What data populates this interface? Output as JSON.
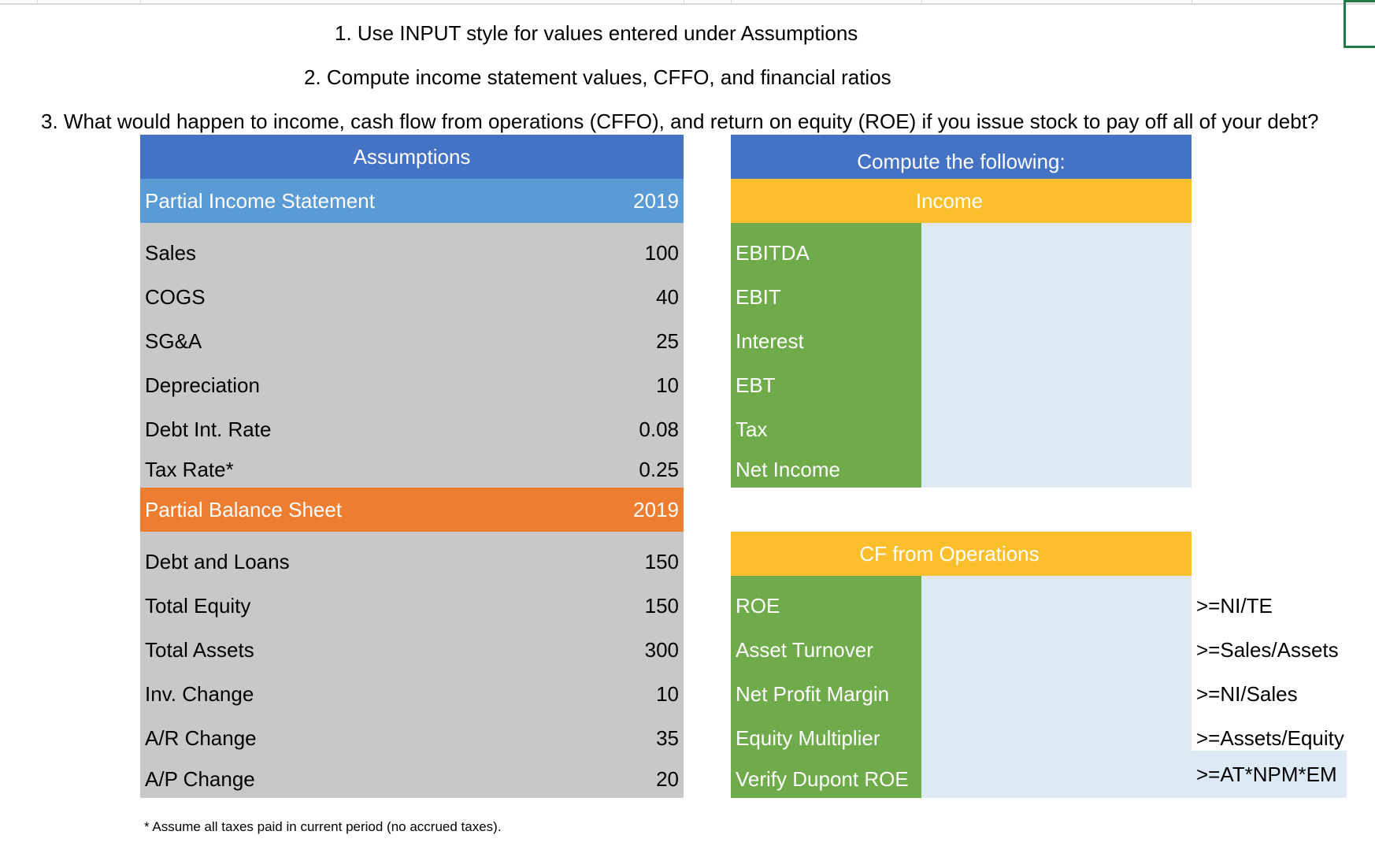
{
  "instructions": [
    "1. Use INPUT style for values entered under Assumptions",
    "2. Compute income statement values, CFFO, and financial ratios",
    "3. What would happen to income, cash flow from operations (CFFO), and return on equity (ROE) if you issue stock to pay off all of your debt?"
  ],
  "assumptions": {
    "title": "Assumptions",
    "income_statement": {
      "header": "Partial Income Statement",
      "year": "2019",
      "rows": [
        {
          "label": "Sales",
          "value": "100"
        },
        {
          "label": "COGS",
          "value": "40"
        },
        {
          "label": "SG&A",
          "value": "25"
        },
        {
          "label": "Depreciation",
          "value": "10"
        },
        {
          "label": "Debt Int. Rate",
          "value": "0.08"
        },
        {
          "label": "Tax Rate*",
          "value": "0.25"
        }
      ]
    },
    "balance_sheet": {
      "header": "Partial Balance Sheet",
      "year": "2019",
      "rows": [
        {
          "label": "Debt and Loans",
          "value": "150"
        },
        {
          "label": "Total Equity",
          "value": "150"
        },
        {
          "label": "Total Assets",
          "value": "300"
        },
        {
          "label": "Inv. Change",
          "value": "10"
        },
        {
          "label": "A/R Change",
          "value": "35"
        },
        {
          "label": "A/P Change",
          "value": "20"
        }
      ]
    },
    "footnote": "* Assume all taxes paid in current period (no accrued taxes)."
  },
  "compute": {
    "title": "Compute the following:",
    "income": {
      "header": "Income",
      "rows": [
        "EBITDA",
        "EBIT",
        "Interest",
        "EBT",
        "Tax",
        "Net Income"
      ]
    },
    "cffo": {
      "header": "CF from Operations",
      "rows": [
        {
          "label": "ROE",
          "hint": ">=NI/TE"
        },
        {
          "label": "Asset Turnover",
          "hint": ">=Sales/Assets"
        },
        {
          "label": "Net Profit Margin",
          "hint": ">=NI/Sales"
        },
        {
          "label": "Equity Multiplier",
          "hint": ">=Assets/Equity"
        },
        {
          "label": "Verify Dupont ROE",
          "hint": ">=AT*NPM*EM"
        }
      ]
    }
  },
  "colors": {
    "header_blue": "#4472c4",
    "light_blue": "#5b9bd5",
    "gray": "#c8c8c8",
    "orange": "#ed7d31",
    "yellow": "#fbbf2c",
    "green": "#6fab4b",
    "pale_blue": "#dde9f5"
  }
}
